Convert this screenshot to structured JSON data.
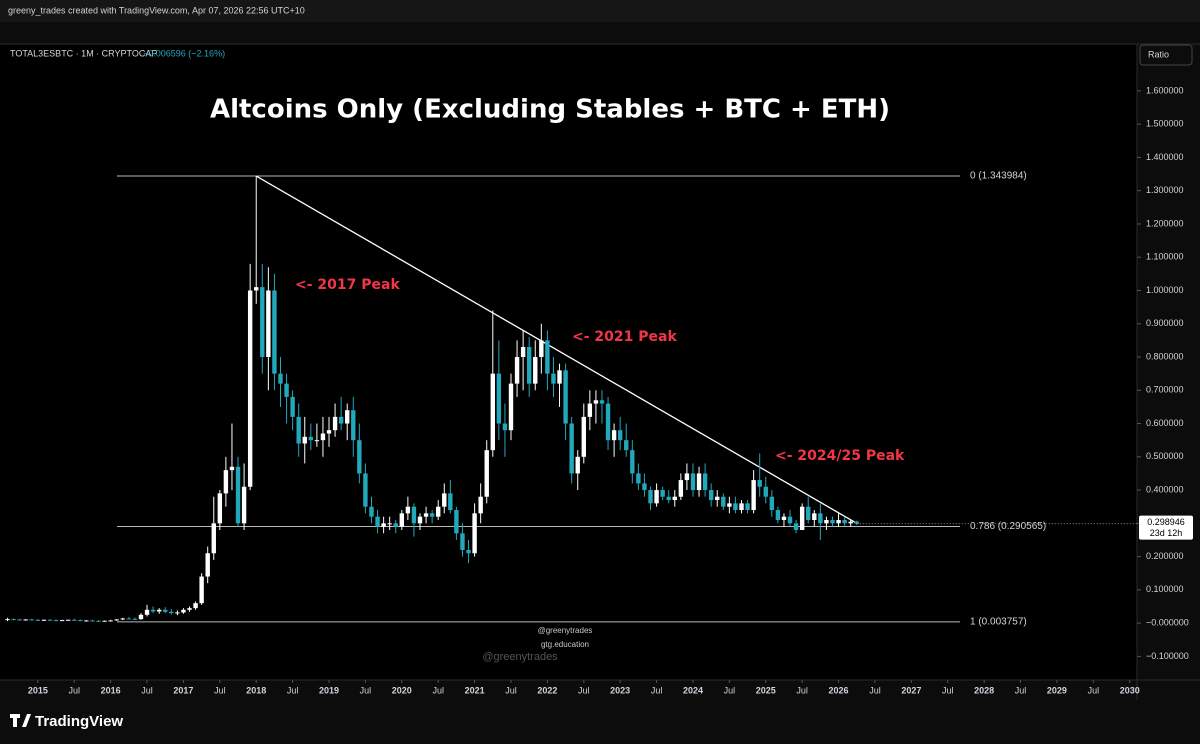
{
  "header": {
    "credit": "greeny_trades created with TradingView.com, Apr 07, 2026 22:56 UTC+10",
    "symbol": "TOTAL3ESBTC · 1M · CRYPTOCAP",
    "change": "−0.006596 (−2.16%)",
    "scale_button": "Ratio"
  },
  "chart_data": {
    "type": "candlestick",
    "title": "Altcoins Only (Excluding Stables + BTC + ETH)",
    "up_color": "#ffffff",
    "down_color": "#22a8bb",
    "xlim": [
      2014.48,
      2030.1
    ],
    "ylim": [
      -0.171,
      1.741
    ],
    "xticks": [
      2015,
      {
        "value": 2015.5,
        "label": "Jul"
      },
      2016,
      {
        "value": 2016.5,
        "label": "Jul"
      },
      2017,
      {
        "value": 2017.5,
        "label": "Jul"
      },
      2018,
      {
        "value": 2018.5,
        "label": "Jul"
      },
      2019,
      {
        "value": 2019.5,
        "label": "Jul"
      },
      2020,
      {
        "value": 2020.5,
        "label": "Jul"
      },
      2021,
      {
        "value": 2021.5,
        "label": "Jul"
      },
      2022,
      {
        "value": 2022.5,
        "label": "Jul"
      },
      2023,
      {
        "value": 2023.5,
        "label": "Jul"
      },
      2024,
      {
        "value": 2024.5,
        "label": "Jul"
      },
      2025,
      {
        "value": 2025.5,
        "label": "Jul"
      },
      2026,
      {
        "value": 2026.5,
        "label": "Jul"
      },
      2027,
      {
        "value": 2027.5,
        "label": "Jul"
      },
      2028,
      {
        "value": 2028.5,
        "label": "Jul"
      },
      2029,
      {
        "value": 2029.5,
        "label": "Jul"
      },
      2030
    ],
    "yticks": [
      {
        "value": 1.6,
        "label": "1.600000"
      },
      {
        "value": 1.5,
        "label": "1.500000"
      },
      {
        "value": 1.4,
        "label": "1.400000"
      },
      {
        "value": 1.3,
        "label": "1.300000"
      },
      {
        "value": 1.2,
        "label": "1.200000"
      },
      {
        "value": 1.1,
        "label": "1.100000"
      },
      {
        "value": 1.0,
        "label": "1.000000"
      },
      {
        "value": 0.9,
        "label": "0.900000"
      },
      {
        "value": 0.8,
        "label": "0.800000"
      },
      {
        "value": 0.7,
        "label": "0.700000"
      },
      {
        "value": 0.6,
        "label": "0.600000"
      },
      {
        "value": 0.5,
        "label": "0.500000"
      },
      {
        "value": 0.4,
        "label": "0.400000"
      },
      {
        "value": 0.3,
        "label": "0.300000"
      },
      {
        "value": 0.2,
        "label": "0.200000"
      },
      {
        "value": 0.1,
        "label": "0.100000"
      },
      {
        "value": 0,
        "label": "−0.000000"
      },
      {
        "value": -0.1,
        "label": "−0.100000"
      }
    ],
    "fib_levels": [
      {
        "value": 1.343984,
        "label": "0 (1.343984)"
      },
      {
        "value": 0.290565,
        "label": "0.786 (0.290565)"
      },
      {
        "value": 0.003757,
        "label": "1 (0.003757)"
      }
    ],
    "trendline": {
      "x": [
        "2018-01",
        "2026-04"
      ],
      "y": [
        1.343984,
        0.3
      ]
    },
    "annotations": [
      "<- 2017 Peak",
      "<- 2021 Peak",
      "<- 2024/25 Peak"
    ],
    "countdown": "23d 12h",
    "watermarks": [
      "@greenytrades",
      "gtg.education",
      "@greenytrades"
    ],
    "candles": [
      {
        "t": "2014-08",
        "o": 0.01,
        "h": 0.016,
        "l": 0.006,
        "c": 0.012
      },
      {
        "t": "2014-09",
        "o": 0.012,
        "h": 0.014,
        "l": 0.009,
        "c": 0.011
      },
      {
        "t": "2014-10",
        "o": 0.011,
        "h": 0.013,
        "l": 0.009,
        "c": 0.01
      },
      {
        "t": "2014-11",
        "o": 0.01,
        "h": 0.012,
        "l": 0.008,
        "c": 0.011
      },
      {
        "t": "2014-12",
        "o": 0.011,
        "h": 0.013,
        "l": 0.009,
        "c": 0.01
      },
      {
        "t": "2015-01",
        "o": 0.01,
        "h": 0.012,
        "l": 0.007,
        "c": 0.008
      },
      {
        "t": "2015-02",
        "o": 0.008,
        "h": 0.011,
        "l": 0.007,
        "c": 0.01
      },
      {
        "t": "2015-03",
        "o": 0.01,
        "h": 0.012,
        "l": 0.008,
        "c": 0.009
      },
      {
        "t": "2015-04",
        "o": 0.009,
        "h": 0.011,
        "l": 0.007,
        "c": 0.008
      },
      {
        "t": "2015-05",
        "o": 0.008,
        "h": 0.01,
        "l": 0.007,
        "c": 0.009
      },
      {
        "t": "2015-06",
        "o": 0.009,
        "h": 0.011,
        "l": 0.008,
        "c": 0.01
      },
      {
        "t": "2015-07",
        "o": 0.01,
        "h": 0.013,
        "l": 0.008,
        "c": 0.009
      },
      {
        "t": "2015-08",
        "o": 0.009,
        "h": 0.011,
        "l": 0.006,
        "c": 0.007
      },
      {
        "t": "2015-09",
        "o": 0.007,
        "h": 0.009,
        "l": 0.006,
        "c": 0.008
      },
      {
        "t": "2015-10",
        "o": 0.008,
        "h": 0.01,
        "l": 0.006,
        "c": 0.007
      },
      {
        "t": "2015-11",
        "o": 0.007,
        "h": 0.009,
        "l": 0.005,
        "c": 0.006
      },
      {
        "t": "2015-12",
        "o": 0.006,
        "h": 0.008,
        "l": 0.005,
        "c": 0.007
      },
      {
        "t": "2016-01",
        "o": 0.007,
        "h": 0.01,
        "l": 0.005,
        "c": 0.008
      },
      {
        "t": "2016-02",
        "o": 0.008,
        "h": 0.012,
        "l": 0.007,
        "c": 0.011
      },
      {
        "t": "2016-03",
        "o": 0.011,
        "h": 0.016,
        "l": 0.009,
        "c": 0.014
      },
      {
        "t": "2016-04",
        "o": 0.014,
        "h": 0.018,
        "l": 0.011,
        "c": 0.013
      },
      {
        "t": "2016-05",
        "o": 0.013,
        "h": 0.017,
        "l": 0.01,
        "c": 0.012
      },
      {
        "t": "2016-06",
        "o": 0.012,
        "h": 0.03,
        "l": 0.01,
        "c": 0.025
      },
      {
        "t": "2016-07",
        "o": 0.025,
        "h": 0.055,
        "l": 0.02,
        "c": 0.04
      },
      {
        "t": "2016-08",
        "o": 0.04,
        "h": 0.05,
        "l": 0.03,
        "c": 0.035
      },
      {
        "t": "2016-09",
        "o": 0.035,
        "h": 0.045,
        "l": 0.028,
        "c": 0.04
      },
      {
        "t": "2016-10",
        "o": 0.04,
        "h": 0.048,
        "l": 0.03,
        "c": 0.034
      },
      {
        "t": "2016-11",
        "o": 0.034,
        "h": 0.042,
        "l": 0.026,
        "c": 0.03
      },
      {
        "t": "2016-12",
        "o": 0.03,
        "h": 0.038,
        "l": 0.024,
        "c": 0.032
      },
      {
        "t": "2017-01",
        "o": 0.032,
        "h": 0.045,
        "l": 0.028,
        "c": 0.04
      },
      {
        "t": "2017-02",
        "o": 0.04,
        "h": 0.05,
        "l": 0.034,
        "c": 0.045
      },
      {
        "t": "2017-03",
        "o": 0.045,
        "h": 0.065,
        "l": 0.04,
        "c": 0.06
      },
      {
        "t": "2017-04",
        "o": 0.06,
        "h": 0.15,
        "l": 0.055,
        "c": 0.14
      },
      {
        "t": "2017-05",
        "o": 0.14,
        "h": 0.23,
        "l": 0.12,
        "c": 0.21
      },
      {
        "t": "2017-06",
        "o": 0.21,
        "h": 0.38,
        "l": 0.19,
        "c": 0.3
      },
      {
        "t": "2017-07",
        "o": 0.3,
        "h": 0.4,
        "l": 0.28,
        "c": 0.39
      },
      {
        "t": "2017-08",
        "o": 0.39,
        "h": 0.5,
        "l": 0.35,
        "c": 0.46
      },
      {
        "t": "2017-09",
        "o": 0.46,
        "h": 0.6,
        "l": 0.4,
        "c": 0.47
      },
      {
        "t": "2017-10",
        "o": 0.47,
        "h": 0.5,
        "l": 0.29,
        "c": 0.3
      },
      {
        "t": "2017-11",
        "o": 0.3,
        "h": 0.48,
        "l": 0.28,
        "c": 0.41
      },
      {
        "t": "2017-12",
        "o": 0.41,
        "h": 1.08,
        "l": 0.4,
        "c": 1.0
      },
      {
        "t": "2018-01",
        "o": 1.0,
        "h": 1.343984,
        "l": 0.96,
        "c": 1.01
      },
      {
        "t": "2018-02",
        "o": 1.01,
        "h": 1.08,
        "l": 0.75,
        "c": 0.8
      },
      {
        "t": "2018-03",
        "o": 0.8,
        "h": 1.07,
        "l": 0.7,
        "c": 1.0
      },
      {
        "t": "2018-04",
        "o": 1.0,
        "h": 1.05,
        "l": 0.7,
        "c": 0.75
      },
      {
        "t": "2018-05",
        "o": 0.75,
        "h": 0.8,
        "l": 0.65,
        "c": 0.72
      },
      {
        "t": "2018-06",
        "o": 0.72,
        "h": 0.75,
        "l": 0.6,
        "c": 0.68
      },
      {
        "t": "2018-07",
        "o": 0.68,
        "h": 0.7,
        "l": 0.58,
        "c": 0.62
      },
      {
        "t": "2018-08",
        "o": 0.62,
        "h": 0.66,
        "l": 0.5,
        "c": 0.54
      },
      {
        "t": "2018-09",
        "o": 0.54,
        "h": 0.62,
        "l": 0.48,
        "c": 0.56
      },
      {
        "t": "2018-10",
        "o": 0.56,
        "h": 0.6,
        "l": 0.52,
        "c": 0.55
      },
      {
        "t": "2018-11",
        "o": 0.55,
        "h": 0.6,
        "l": 0.53,
        "c": 0.55
      },
      {
        "t": "2018-12",
        "o": 0.55,
        "h": 0.62,
        "l": 0.5,
        "c": 0.57
      },
      {
        "t": "2019-01",
        "o": 0.57,
        "h": 0.62,
        "l": 0.53,
        "c": 0.58
      },
      {
        "t": "2019-02",
        "o": 0.58,
        "h": 0.66,
        "l": 0.56,
        "c": 0.62
      },
      {
        "t": "2019-03",
        "o": 0.62,
        "h": 0.68,
        "l": 0.58,
        "c": 0.6
      },
      {
        "t": "2019-04",
        "o": 0.6,
        "h": 0.66,
        "l": 0.55,
        "c": 0.64
      },
      {
        "t": "2019-05",
        "o": 0.64,
        "h": 0.68,
        "l": 0.5,
        "c": 0.55
      },
      {
        "t": "2019-06",
        "o": 0.55,
        "h": 0.6,
        "l": 0.42,
        "c": 0.45
      },
      {
        "t": "2019-07",
        "o": 0.45,
        "h": 0.48,
        "l": 0.33,
        "c": 0.35
      },
      {
        "t": "2019-08",
        "o": 0.35,
        "h": 0.38,
        "l": 0.3,
        "c": 0.32
      },
      {
        "t": "2019-09",
        "o": 0.32,
        "h": 0.34,
        "l": 0.27,
        "c": 0.29
      },
      {
        "t": "2019-10",
        "o": 0.29,
        "h": 0.32,
        "l": 0.27,
        "c": 0.3
      },
      {
        "t": "2019-11",
        "o": 0.3,
        "h": 0.32,
        "l": 0.28,
        "c": 0.3
      },
      {
        "t": "2019-12",
        "o": 0.3,
        "h": 0.31,
        "l": 0.27,
        "c": 0.29
      },
      {
        "t": "2020-01",
        "o": 0.29,
        "h": 0.34,
        "l": 0.28,
        "c": 0.33
      },
      {
        "t": "2020-02",
        "o": 0.33,
        "h": 0.38,
        "l": 0.31,
        "c": 0.35
      },
      {
        "t": "2020-03",
        "o": 0.35,
        "h": 0.36,
        "l": 0.26,
        "c": 0.3
      },
      {
        "t": "2020-04",
        "o": 0.3,
        "h": 0.33,
        "l": 0.28,
        "c": 0.32
      },
      {
        "t": "2020-05",
        "o": 0.32,
        "h": 0.35,
        "l": 0.3,
        "c": 0.33
      },
      {
        "t": "2020-06",
        "o": 0.33,
        "h": 0.34,
        "l": 0.3,
        "c": 0.32
      },
      {
        "t": "2020-07",
        "o": 0.32,
        "h": 0.37,
        "l": 0.31,
        "c": 0.35
      },
      {
        "t": "2020-08",
        "o": 0.35,
        "h": 0.42,
        "l": 0.33,
        "c": 0.39
      },
      {
        "t": "2020-09",
        "o": 0.39,
        "h": 0.43,
        "l": 0.33,
        "c": 0.34
      },
      {
        "t": "2020-10",
        "o": 0.34,
        "h": 0.35,
        "l": 0.25,
        "c": 0.27
      },
      {
        "t": "2020-11",
        "o": 0.27,
        "h": 0.3,
        "l": 0.2,
        "c": 0.22
      },
      {
        "t": "2020-12",
        "o": 0.22,
        "h": 0.25,
        "l": 0.18,
        "c": 0.21
      },
      {
        "t": "2021-01",
        "o": 0.21,
        "h": 0.36,
        "l": 0.2,
        "c": 0.33
      },
      {
        "t": "2021-02",
        "o": 0.33,
        "h": 0.42,
        "l": 0.3,
        "c": 0.38
      },
      {
        "t": "2021-03",
        "o": 0.38,
        "h": 0.55,
        "l": 0.36,
        "c": 0.52
      },
      {
        "t": "2021-04",
        "o": 0.52,
        "h": 0.94,
        "l": 0.5,
        "c": 0.75
      },
      {
        "t": "2021-05",
        "o": 0.75,
        "h": 0.85,
        "l": 0.55,
        "c": 0.6
      },
      {
        "t": "2021-06",
        "o": 0.6,
        "h": 0.66,
        "l": 0.5,
        "c": 0.58
      },
      {
        "t": "2021-07",
        "o": 0.58,
        "h": 0.75,
        "l": 0.55,
        "c": 0.72
      },
      {
        "t": "2021-08",
        "o": 0.72,
        "h": 0.85,
        "l": 0.68,
        "c": 0.8
      },
      {
        "t": "2021-09",
        "o": 0.8,
        "h": 0.88,
        "l": 0.7,
        "c": 0.83
      },
      {
        "t": "2021-10",
        "o": 0.83,
        "h": 0.86,
        "l": 0.68,
        "c": 0.72
      },
      {
        "t": "2021-11",
        "o": 0.72,
        "h": 0.85,
        "l": 0.7,
        "c": 0.8
      },
      {
        "t": "2021-12",
        "o": 0.8,
        "h": 0.9,
        "l": 0.75,
        "c": 0.85
      },
      {
        "t": "2022-01",
        "o": 0.85,
        "h": 0.88,
        "l": 0.7,
        "c": 0.75
      },
      {
        "t": "2022-02",
        "o": 0.75,
        "h": 0.8,
        "l": 0.68,
        "c": 0.72
      },
      {
        "t": "2022-03",
        "o": 0.72,
        "h": 0.78,
        "l": 0.65,
        "c": 0.76
      },
      {
        "t": "2022-04",
        "o": 0.76,
        "h": 0.78,
        "l": 0.55,
        "c": 0.6
      },
      {
        "t": "2022-05",
        "o": 0.6,
        "h": 0.62,
        "l": 0.42,
        "c": 0.45
      },
      {
        "t": "2022-06",
        "o": 0.45,
        "h": 0.52,
        "l": 0.4,
        "c": 0.5
      },
      {
        "t": "2022-07",
        "o": 0.5,
        "h": 0.66,
        "l": 0.48,
        "c": 0.62
      },
      {
        "t": "2022-08",
        "o": 0.62,
        "h": 0.7,
        "l": 0.58,
        "c": 0.66
      },
      {
        "t": "2022-09",
        "o": 0.66,
        "h": 0.7,
        "l": 0.6,
        "c": 0.67
      },
      {
        "t": "2022-10",
        "o": 0.67,
        "h": 0.7,
        "l": 0.6,
        "c": 0.66
      },
      {
        "t": "2022-11",
        "o": 0.66,
        "h": 0.68,
        "l": 0.52,
        "c": 0.55
      },
      {
        "t": "2022-12",
        "o": 0.55,
        "h": 0.6,
        "l": 0.5,
        "c": 0.58
      },
      {
        "t": "2023-01",
        "o": 0.58,
        "h": 0.62,
        "l": 0.52,
        "c": 0.55
      },
      {
        "t": "2023-02",
        "o": 0.55,
        "h": 0.6,
        "l": 0.5,
        "c": 0.52
      },
      {
        "t": "2023-03",
        "o": 0.52,
        "h": 0.55,
        "l": 0.42,
        "c": 0.45
      },
      {
        "t": "2023-04",
        "o": 0.45,
        "h": 0.48,
        "l": 0.4,
        "c": 0.42
      },
      {
        "t": "2023-05",
        "o": 0.42,
        "h": 0.45,
        "l": 0.38,
        "c": 0.4
      },
      {
        "t": "2023-06",
        "o": 0.4,
        "h": 0.41,
        "l": 0.34,
        "c": 0.36
      },
      {
        "t": "2023-07",
        "o": 0.36,
        "h": 0.42,
        "l": 0.35,
        "c": 0.4
      },
      {
        "t": "2023-08",
        "o": 0.4,
        "h": 0.41,
        "l": 0.37,
        "c": 0.38
      },
      {
        "t": "2023-09",
        "o": 0.38,
        "h": 0.4,
        "l": 0.36,
        "c": 0.37
      },
      {
        "t": "2023-10",
        "o": 0.37,
        "h": 0.4,
        "l": 0.35,
        "c": 0.38
      },
      {
        "t": "2023-11",
        "o": 0.38,
        "h": 0.45,
        "l": 0.37,
        "c": 0.43
      },
      {
        "t": "2023-12",
        "o": 0.43,
        "h": 0.48,
        "l": 0.4,
        "c": 0.45
      },
      {
        "t": "2024-01",
        "o": 0.45,
        "h": 0.48,
        "l": 0.38,
        "c": 0.4
      },
      {
        "t": "2024-02",
        "o": 0.4,
        "h": 0.47,
        "l": 0.38,
        "c": 0.45
      },
      {
        "t": "2024-03",
        "o": 0.45,
        "h": 0.48,
        "l": 0.38,
        "c": 0.4
      },
      {
        "t": "2024-04",
        "o": 0.4,
        "h": 0.42,
        "l": 0.35,
        "c": 0.37
      },
      {
        "t": "2024-05",
        "o": 0.37,
        "h": 0.4,
        "l": 0.35,
        "c": 0.38
      },
      {
        "t": "2024-06",
        "o": 0.38,
        "h": 0.39,
        "l": 0.34,
        "c": 0.35
      },
      {
        "t": "2024-07",
        "o": 0.35,
        "h": 0.38,
        "l": 0.33,
        "c": 0.36
      },
      {
        "t": "2024-08",
        "o": 0.36,
        "h": 0.38,
        "l": 0.33,
        "c": 0.34
      },
      {
        "t": "2024-09",
        "o": 0.34,
        "h": 0.37,
        "l": 0.33,
        "c": 0.36
      },
      {
        "t": "2024-10",
        "o": 0.36,
        "h": 0.37,
        "l": 0.33,
        "c": 0.34
      },
      {
        "t": "2024-11",
        "o": 0.34,
        "h": 0.46,
        "l": 0.33,
        "c": 0.43
      },
      {
        "t": "2024-12",
        "o": 0.43,
        "h": 0.51,
        "l": 0.38,
        "c": 0.41
      },
      {
        "t": "2025-01",
        "o": 0.41,
        "h": 0.44,
        "l": 0.36,
        "c": 0.38
      },
      {
        "t": "2025-02",
        "o": 0.38,
        "h": 0.4,
        "l": 0.32,
        "c": 0.34
      },
      {
        "t": "2025-03",
        "o": 0.34,
        "h": 0.35,
        "l": 0.3,
        "c": 0.31
      },
      {
        "t": "2025-04",
        "o": 0.31,
        "h": 0.33,
        "l": 0.29,
        "c": 0.32
      },
      {
        "t": "2025-05",
        "o": 0.32,
        "h": 0.34,
        "l": 0.29,
        "c": 0.3
      },
      {
        "t": "2025-06",
        "o": 0.3,
        "h": 0.31,
        "l": 0.27,
        "c": 0.28
      },
      {
        "t": "2025-07",
        "o": 0.28,
        "h": 0.36,
        "l": 0.28,
        "c": 0.35
      },
      {
        "t": "2025-08",
        "o": 0.35,
        "h": 0.38,
        "l": 0.3,
        "c": 0.31
      },
      {
        "t": "2025-09",
        "o": 0.31,
        "h": 0.34,
        "l": 0.29,
        "c": 0.33
      },
      {
        "t": "2025-10",
        "o": 0.33,
        "h": 0.36,
        "l": 0.25,
        "c": 0.3
      },
      {
        "t": "2025-11",
        "o": 0.3,
        "h": 0.32,
        "l": 0.28,
        "c": 0.31
      },
      {
        "t": "2025-12",
        "o": 0.31,
        "h": 0.32,
        "l": 0.29,
        "c": 0.3
      },
      {
        "t": "2026-01",
        "o": 0.3,
        "h": 0.33,
        "l": 0.29,
        "c": 0.31
      },
      {
        "t": "2026-02",
        "o": 0.31,
        "h": 0.32,
        "l": 0.29,
        "c": 0.3
      },
      {
        "t": "2026-03",
        "o": 0.3,
        "h": 0.31,
        "l": 0.29,
        "c": 0.305
      },
      {
        "t": "2026-04",
        "o": 0.305,
        "h": 0.308,
        "l": 0.295,
        "c": 0.298946
      }
    ]
  },
  "footer": {
    "brand": "TradingView"
  }
}
